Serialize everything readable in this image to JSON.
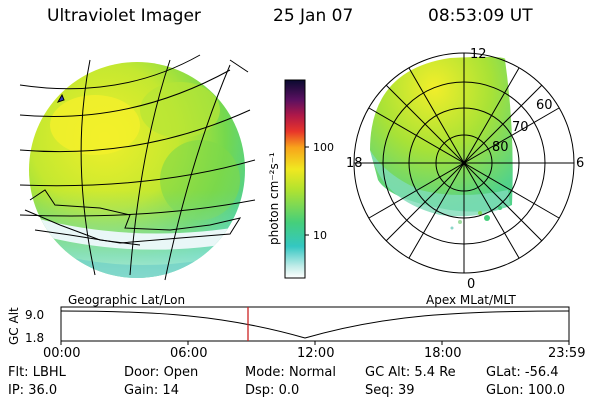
{
  "header": {
    "instrument": "Ultraviolet Imager",
    "date": "25 Jan 07",
    "time": "08:53:09 UT"
  },
  "colorbar": {
    "unit_label": "photon cm⁻²s⁻¹",
    "ticks": [
      "100",
      "10"
    ]
  },
  "polar_plot": {
    "mlt_labels": [
      "12",
      "18",
      "6",
      "0"
    ],
    "mlat_labels": [
      "60",
      "70",
      "80"
    ]
  },
  "timeline": {
    "left_label": "Geographic Lat/Lon",
    "right_label": "Apex MLat/MLT",
    "axis_title": "GC Alt",
    "y_ticks": [
      "9.0",
      "1.8"
    ],
    "x_ticks": [
      "00:00",
      "06:00",
      "12:00",
      "18:00",
      "23:59"
    ],
    "marker_color": "#cc2222"
  },
  "status": {
    "row1": [
      {
        "label": "Flt:",
        "value": "LBHL"
      },
      {
        "label": "Door:",
        "value": "Open"
      },
      {
        "label": "Mode:",
        "value": "Normal"
      },
      {
        "label": "GC Alt:",
        "value": "5.4 Re"
      },
      {
        "label": "GLat:",
        "value": "-56.4"
      }
    ],
    "row2": [
      {
        "label": "IP:",
        "value": "36.0"
      },
      {
        "label": "Gain:",
        "value": "14"
      },
      {
        "label": "Dsp:",
        "value": "0.0"
      },
      {
        "label": "Seq:",
        "value": "39"
      },
      {
        "label": "GLon:",
        "value": "100.0"
      }
    ]
  }
}
